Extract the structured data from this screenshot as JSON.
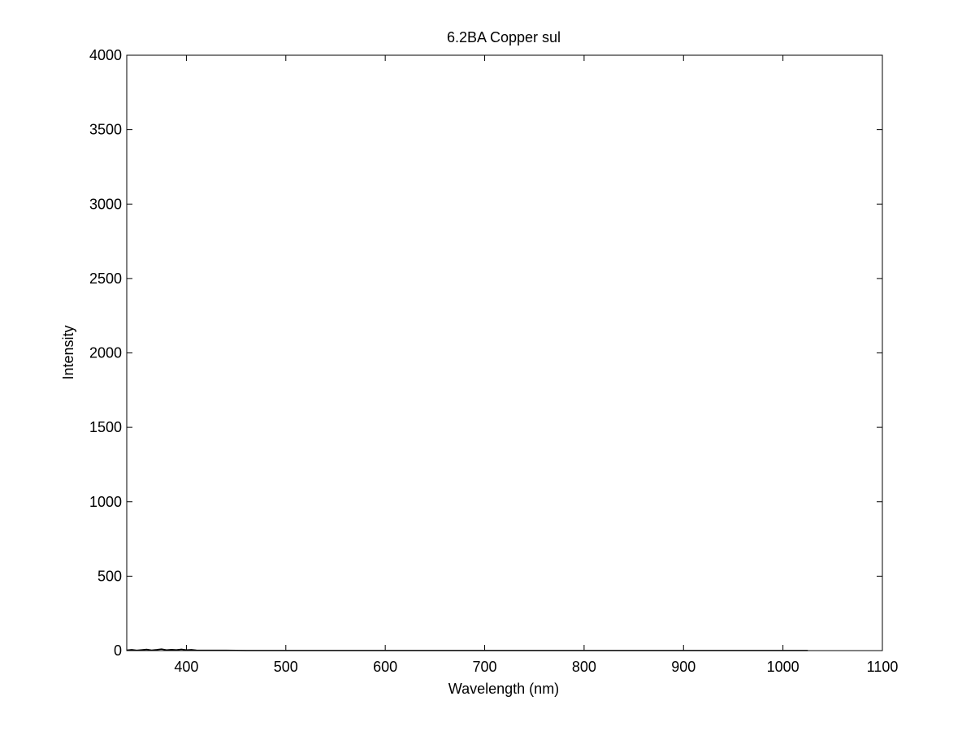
{
  "chart_data": {
    "type": "line",
    "title": "6.2BA Copper sul",
    "xlabel": "Wavelength (nm)",
    "ylabel": "Intensity",
    "xlim": [
      340,
      1100
    ],
    "ylim": [
      0,
      4000
    ],
    "xticks": [
      400,
      500,
      600,
      700,
      800,
      900,
      1000,
      1100
    ],
    "yticks": [
      0,
      500,
      1000,
      1500,
      2000,
      2500,
      3000,
      3500,
      4000
    ],
    "grid": false,
    "series": [
      {
        "color": "#000000",
        "x": [
          340,
          345,
          350,
          355,
          360,
          365,
          370,
          375,
          380,
          385,
          390,
          395,
          400,
          405,
          410,
          420,
          440,
          460,
          500,
          550,
          600,
          650,
          700,
          750,
          800,
          850,
          900,
          950,
          1000,
          1025
        ],
        "y": [
          3,
          6,
          2,
          5,
          8,
          3,
          6,
          10,
          4,
          7,
          5,
          9,
          4,
          6,
          3,
          2,
          2,
          1,
          1,
          1,
          1,
          1,
          1,
          1,
          1,
          1,
          1,
          1,
          1,
          1
        ]
      }
    ]
  }
}
